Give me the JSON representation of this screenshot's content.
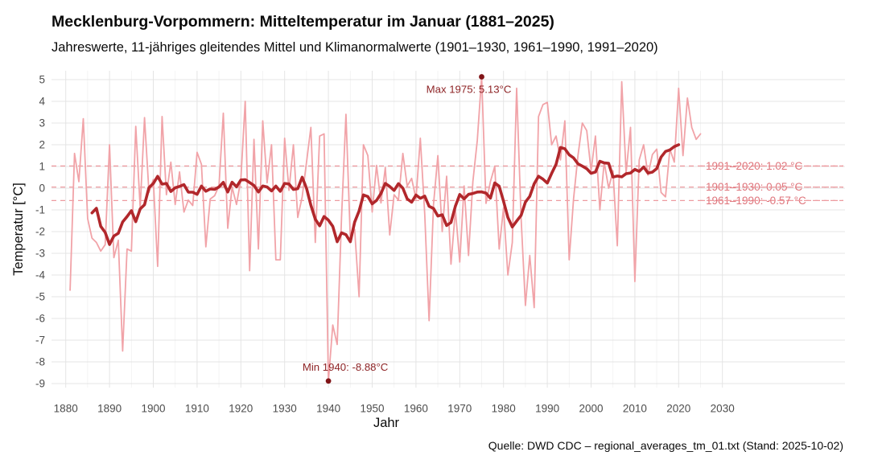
{
  "chart_data": {
    "type": "line",
    "title": "Mecklenburg-Vorpommern: Mitteltemperatur im Januar (1881–2025)",
    "subtitle": "Jahreswerte, 11-jähriges gleitendes Mittel und Klimanormalwerte (1901–1930, 1961–1990, 1991–2020)",
    "caption": "Quelle: DWD CDC – regional_averages_tm_01.txt (Stand: 2025-10-02)",
    "xlabel": "Jahr",
    "ylabel": "Temperatur [°C]",
    "x_ticks": [
      1880,
      1890,
      1900,
      1910,
      1920,
      1930,
      1940,
      1950,
      1960,
      1970,
      1980,
      1990,
      2000,
      2010,
      2020,
      2030
    ],
    "y_ticks": [
      5,
      4,
      3,
      2,
      1,
      0,
      -1,
      -2,
      -3,
      -4,
      -5,
      -6,
      -7,
      -8,
      -9
    ],
    "ylim": [
      -9.3,
      5.6
    ],
    "xlim": [
      1877,
      2058
    ],
    "grid": true,
    "legend_position": "none",
    "series": [
      {
        "name": "Jahreswerte",
        "start_year": 1881,
        "end_year": 2025,
        "values": [
          -4.7,
          1.6,
          0.3,
          3.2,
          -1.4,
          -2.3,
          -2.5,
          -2.9,
          -2.6,
          2.0,
          -3.2,
          -2.4,
          -7.5,
          -2.8,
          -2.9,
          2.85,
          -0.9,
          3.25,
          -0.2,
          0.4,
          -3.6,
          3.3,
          -0.3,
          1.2,
          -0.75,
          0.75,
          -1.1,
          -0.55,
          -0.8,
          1.65,
          1.1,
          -2.7,
          -0.5,
          -0.35,
          0.1,
          3.45,
          -1.85,
          0.05,
          -0.75,
          0.4,
          4.0,
          -3.8,
          2.25,
          -2.8,
          3.1,
          0.25,
          2.0,
          -3.3,
          -3.3,
          2.3,
          -0.1,
          2.0,
          -1.35,
          -0.4,
          1.2,
          2.8,
          -2.5,
          2.4,
          2.5,
          -8.88,
          -6.3,
          -7.2,
          -1.35,
          3.4,
          -2.3,
          -1.9,
          -5.0,
          2.0,
          1.5,
          -1.1,
          1.05,
          -0.68,
          0.95,
          -2.15,
          -0.3,
          -0.55,
          1.6,
          0.1,
          0.45,
          -0.5,
          2.3,
          -1.2,
          -6.1,
          -0.75,
          1.5,
          -2.0,
          0.55,
          -3.5,
          -1.0,
          -3.4,
          0.1,
          -3.1,
          0.3,
          2.2,
          5.13,
          -0.7,
          0.3,
          1.0,
          -2.8,
          -0.9,
          -4.0,
          -2.5,
          4.6,
          -1.35,
          -5.4,
          -3.1,
          -5.5,
          3.3,
          3.85,
          3.95,
          2.0,
          2.4,
          1.3,
          3.1,
          -3.3,
          -0.5,
          1.5,
          3.0,
          2.65,
          0.8,
          2.4,
          -1.0,
          1.2,
          0.0,
          0.8,
          -2.65,
          4.9,
          0.7,
          2.8,
          -4.3,
          1.3,
          2.0,
          0.6,
          1.55,
          1.8,
          -0.2,
          -0.4,
          1.8,
          1.2,
          4.6,
          1.5,
          4.15,
          2.8,
          2.25,
          2.5
        ]
      }
    ],
    "moving_average": {
      "name": "11-jähriges gleitendes Mittel",
      "window": 11,
      "derived_from": "Jahreswerte",
      "start_year": 1886,
      "end_year": 2020
    },
    "normals": [
      {
        "label": "1991–2020: 1.02 °C",
        "value": 1.02
      },
      {
        "label": "1901–1930: 0.05 °C",
        "value": 0.05
      },
      {
        "label": "1961–1990: -0.57 °C",
        "value": -0.57
      }
    ],
    "annotations": [
      {
        "label": "Max 1975: 5.13°C",
        "year": 1975,
        "value": 5.13
      },
      {
        "label": "Min 1940: -8.88°C",
        "year": 1940,
        "value": -8.88
      }
    ],
    "colors": {
      "annual_line": "#F1A3A8",
      "moving_average_line": "#B1272B",
      "normal_dash": "#ED9BA0",
      "normal_text": "#DF757C",
      "extreme_point": "#801417",
      "extreme_text": "#8E2426",
      "grid_major": "#E4E4E4",
      "grid_minor": "#F1F1F1",
      "tick_text": "#4D4D4D",
      "text": "#0A0A0A"
    }
  }
}
